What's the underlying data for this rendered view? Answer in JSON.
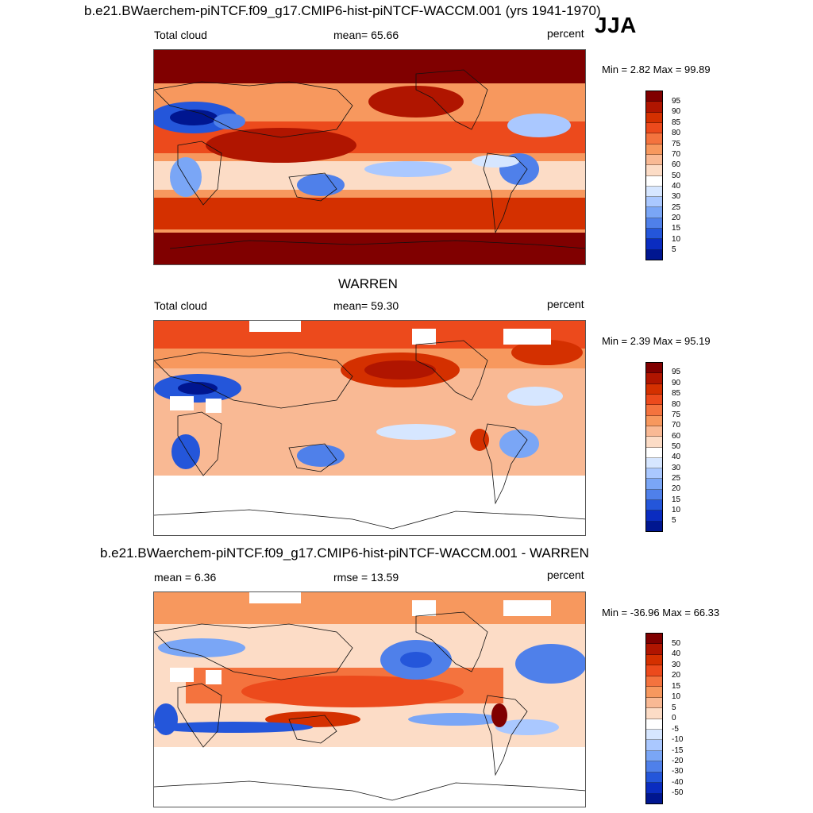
{
  "figure": {
    "title": "b.e21.BWaerchem-piNTCF.f09_g17.CMIP6-hist-piNTCF-WACCM.001 (yrs 1941-1970)",
    "season": "JJA"
  },
  "panels": [
    {
      "id": "model",
      "variable": "Total cloud",
      "stat": "mean=  65.66",
      "units": "percent",
      "minmax": "Min =   2.82 Max =  99.89",
      "colorbar": {
        "labels": [
          "95",
          "90",
          "85",
          "80",
          "75",
          "70",
          "60",
          "50",
          "40",
          "30",
          "25",
          "20",
          "15",
          "10",
          "5"
        ],
        "colors": [
          "#800000",
          "#b01500",
          "#d43000",
          "#ec4a1c",
          "#f4733e",
          "#f7985e",
          "#f9b994",
          "#fcdcc6",
          "#ffffff",
          "#d6e6ff",
          "#aac8ff",
          "#7aa6f6",
          "#4f80ea",
          "#2456da",
          "#0a2cc0",
          "#001690"
        ]
      }
    },
    {
      "id": "obs",
      "heading": "WARREN",
      "variable": "Total cloud",
      "stat": "mean=  59.30",
      "units": "percent",
      "minmax": "Min =   2.39 Max =  95.19",
      "colorbar": {
        "labels": [
          "95",
          "90",
          "85",
          "80",
          "75",
          "70",
          "60",
          "50",
          "40",
          "30",
          "25",
          "20",
          "15",
          "10",
          "5"
        ],
        "colors": [
          "#800000",
          "#b01500",
          "#d43000",
          "#ec4a1c",
          "#f4733e",
          "#f7985e",
          "#f9b994",
          "#fcdcc6",
          "#ffffff",
          "#d6e6ff",
          "#aac8ff",
          "#7aa6f6",
          "#4f80ea",
          "#2456da",
          "#0a2cc0",
          "#001690"
        ]
      }
    },
    {
      "id": "diff",
      "heading": "b.e21.BWaerchem-piNTCF.f09_g17.CMIP6-hist-piNTCF-WACCM.001 - WARREN",
      "variable": "mean =   6.36",
      "stat": "rmse =  13.59",
      "units": "percent",
      "minmax": "Min = -36.96 Max =  66.33",
      "colorbar": {
        "labels": [
          "50",
          "40",
          "30",
          "20",
          "15",
          "10",
          "5",
          "0",
          "-5",
          "-10",
          "-15",
          "-20",
          "-30",
          "-40",
          "-50"
        ],
        "colors": [
          "#800000",
          "#b01500",
          "#d43000",
          "#ec4a1c",
          "#f4733e",
          "#f7985e",
          "#f9b994",
          "#fcdcc6",
          "#ffffff",
          "#d6e6ff",
          "#aac8ff",
          "#7aa6f6",
          "#4f80ea",
          "#2456da",
          "#0a2cc0",
          "#001690"
        ]
      }
    }
  ]
}
